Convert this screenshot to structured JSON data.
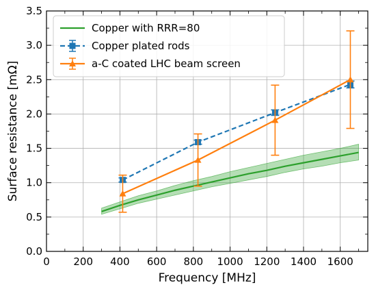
{
  "chart_data": {
    "type": "line",
    "xlabel": "Frequency [MHz]",
    "ylabel": "Surface resistance [mΩ]",
    "xlim": [
      0,
      1750
    ],
    "ylim": [
      0,
      3.5
    ],
    "xticks": [
      0,
      200,
      400,
      600,
      800,
      1000,
      1200,
      1400,
      1600
    ],
    "yticks": [
      0.0,
      0.5,
      1.0,
      1.5,
      2.0,
      2.5,
      3.0,
      3.5
    ],
    "xtick_labels": [
      "0",
      "200",
      "400",
      "600",
      "800",
      "1000",
      "1200",
      "1400",
      "1600"
    ],
    "ytick_labels": [
      "0.0",
      "0.5",
      "1.0",
      "1.5",
      "2.0",
      "2.5",
      "3.0",
      "3.5"
    ],
    "grid": true,
    "legend_position": "top-left",
    "series": [
      {
        "name": "Copper with RRR=80",
        "style": "solid-line-with-band",
        "color": "#2ca02c",
        "x": [
          300,
          400,
          500,
          600,
          700,
          800,
          900,
          1000,
          1100,
          1200,
          1300,
          1400,
          1500,
          1600,
          1700
        ],
        "y": [
          0.58,
          0.67,
          0.75,
          0.82,
          0.89,
          0.95,
          1.01,
          1.07,
          1.13,
          1.18,
          1.24,
          1.29,
          1.34,
          1.39,
          1.44
        ],
        "y_low": [
          0.54,
          0.62,
          0.7,
          0.76,
          0.82,
          0.88,
          0.94,
          0.99,
          1.04,
          1.09,
          1.15,
          1.2,
          1.24,
          1.29,
          1.33
        ],
        "y_high": [
          0.63,
          0.72,
          0.81,
          0.88,
          0.96,
          1.03,
          1.09,
          1.16,
          1.22,
          1.28,
          1.34,
          1.4,
          1.45,
          1.5,
          1.56
        ]
      },
      {
        "name": "Copper plated rods",
        "style": "dashed-line-square-markers",
        "color": "#1f77b4",
        "x": [
          415,
          825,
          1245,
          1655
        ],
        "y": [
          1.04,
          1.59,
          2.02,
          2.43
        ],
        "err": [
          0.03,
          0.03,
          0.04,
          0.05
        ]
      },
      {
        "name": "a-C coated LHC beam screen",
        "style": "solid-line-triangle-markers",
        "color": "#ff7f0e",
        "x": [
          415,
          825,
          1245,
          1655
        ],
        "y": [
          0.84,
          1.33,
          1.91,
          2.5
        ],
        "err": [
          0.27,
          0.38,
          0.51,
          0.71
        ]
      }
    ]
  }
}
